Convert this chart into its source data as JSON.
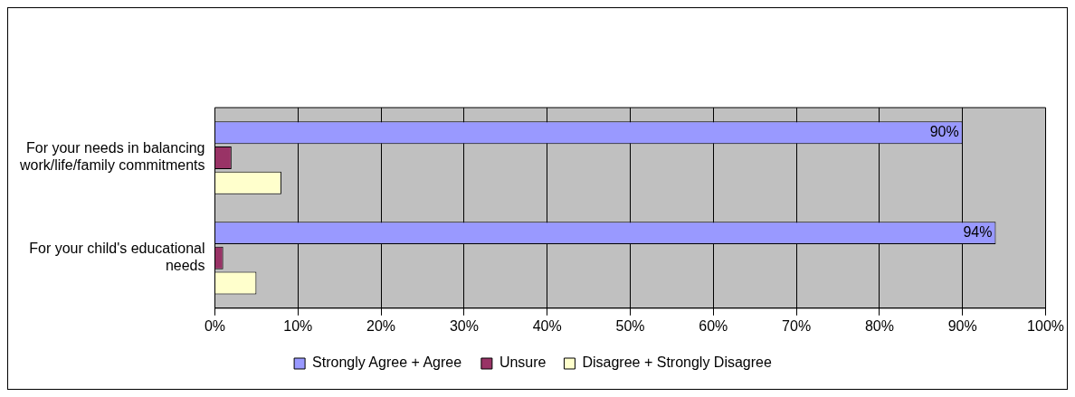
{
  "chart_data": {
    "type": "bar",
    "orientation": "horizontal",
    "categories": [
      "For your needs in balancing work/life/family commitments",
      "For your child's educational needs"
    ],
    "series": [
      {
        "name": "Strongly Agree + Agree",
        "color": "#9999ff",
        "values": [
          90,
          94
        ],
        "value_labels": [
          "90%",
          "94%"
        ]
      },
      {
        "name": "Unsure",
        "color": "#993366",
        "values": [
          2,
          1
        ]
      },
      {
        "name": "Disagree + Strongly Disagree",
        "color": "#ffffcc",
        "values": [
          8,
          5
        ]
      }
    ],
    "xlim": [
      0,
      100
    ],
    "xticks": [
      {
        "value": 0,
        "label": "0%"
      },
      {
        "value": 10,
        "label": "10%"
      },
      {
        "value": 20,
        "label": "20%"
      },
      {
        "value": 30,
        "label": "30%"
      },
      {
        "value": 40,
        "label": "40%"
      },
      {
        "value": 50,
        "label": "50%"
      },
      {
        "value": 60,
        "label": "60%"
      },
      {
        "value": 70,
        "label": "70%"
      },
      {
        "value": 80,
        "label": "80%"
      },
      {
        "value": 90,
        "label": "90%"
      },
      {
        "value": 100,
        "label": "100%"
      }
    ],
    "grid": "x",
    "legend": "bottom"
  }
}
